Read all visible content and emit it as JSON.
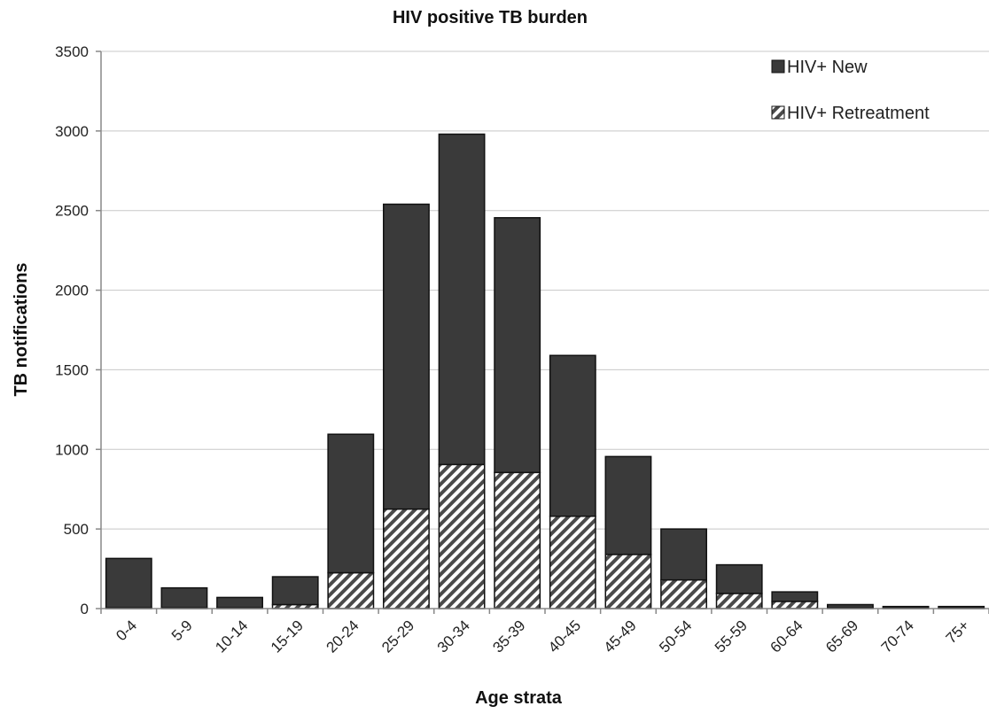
{
  "chart_data": {
    "type": "bar",
    "stacked": true,
    "title": "HIV positive TB burden",
    "xlabel": "Age strata",
    "ylabel": "TB notifications",
    "ylim": [
      0,
      3500
    ],
    "yticks": [
      0,
      500,
      1000,
      1500,
      2000,
      2500,
      3000,
      3500
    ],
    "grid": true,
    "legend_position": "top-right",
    "categories": [
      "0-4",
      "5-9",
      "10-14",
      "15-19",
      "20-24",
      "25-29",
      "30-34",
      "35-39",
      "40-45",
      "45-49",
      "50-54",
      "55-59",
      "60-64",
      "65-69",
      "70-74",
      "75+"
    ],
    "series": [
      {
        "name": "HIV+ Retreatment",
        "pattern": "diagonal-hatch",
        "color": "#555555",
        "values": [
          5,
          5,
          5,
          25,
          225,
          625,
          905,
          855,
          580,
          340,
          180,
          95,
          45,
          5,
          3,
          3
        ]
      },
      {
        "name": "HIV+ New",
        "pattern": "solid",
        "color": "#3a3a3a",
        "values": [
          310,
          125,
          65,
          175,
          870,
          1915,
          2075,
          1600,
          1010,
          615,
          320,
          180,
          60,
          20,
          10,
          10
        ]
      }
    ]
  }
}
